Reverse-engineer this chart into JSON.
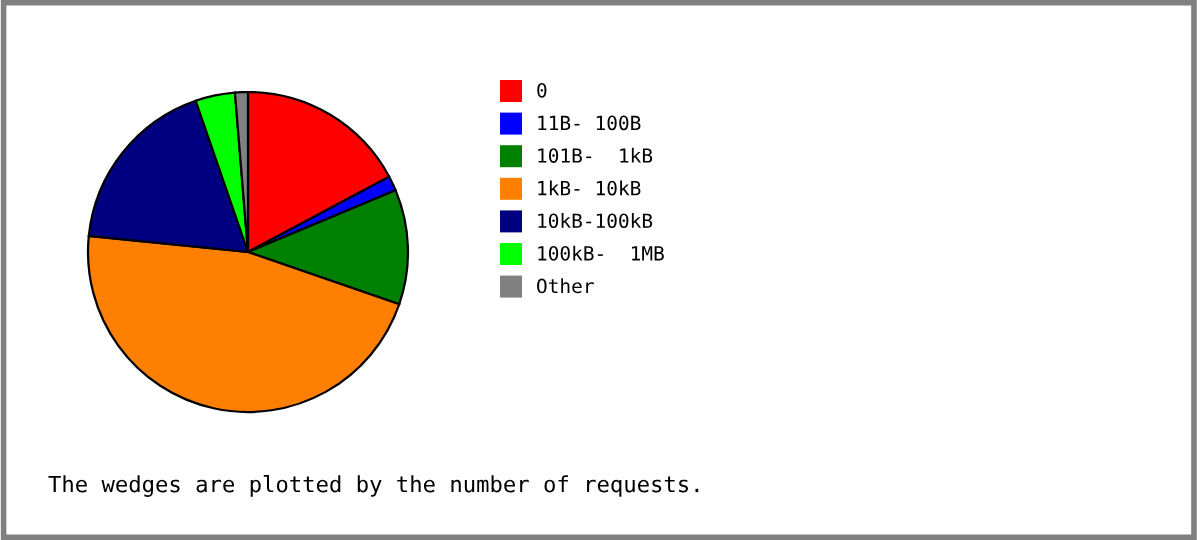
{
  "chart_data": {
    "type": "pie",
    "categories": [
      "0",
      "11B- 100B",
      "101B-  1kB",
      "1kB- 10kB",
      "10kB-100kB",
      "100kB-  1MB",
      "Other"
    ],
    "values": [
      17.2,
      1.5,
      11.6,
      46.3,
      18.1,
      4.0,
      1.3
    ],
    "colors": [
      "#ff0000",
      "#0000ff",
      "#008000",
      "#ff8000",
      "#000080",
      "#00ff00",
      "#808080"
    ],
    "legend": "right",
    "annotations": [
      "The wedges are plotted by the number of requests."
    ]
  }
}
